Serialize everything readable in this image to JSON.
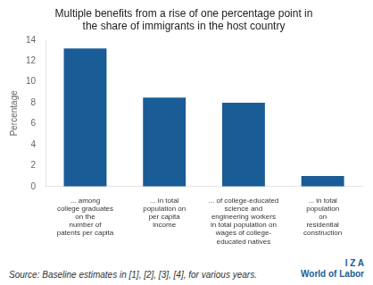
{
  "chart_data": {
    "type": "bar",
    "title": [
      "Multiple benefits from a rise of one percentage point in",
      "the share of immigrants in the host country"
    ],
    "categories": [
      [
        "... among",
        "college graduates",
        "on the",
        "number of",
        "patents per capita"
      ],
      [
        "... in total",
        "population on",
        "per capita",
        "income"
      ],
      [
        "... of college-educated",
        "science and",
        "engineering workers",
        "in total population on",
        "wages of college-",
        "educated natives"
      ],
      [
        "... in total",
        "population",
        "on",
        "residential",
        "construction"
      ]
    ],
    "values": [
      13.2,
      8.5,
      8.0,
      1.0
    ],
    "color": "#1a5c96",
    "ylabel": "Percentage",
    "ylim": [
      0,
      14
    ],
    "yticks": [
      0,
      2,
      4,
      6,
      8,
      10,
      12,
      14
    ],
    "grid": false,
    "annotations": [
      "Source: Baseline estimates in [1], [2], [3], [4], for various years.",
      "I  Z  A",
      "World of Labor"
    ]
  }
}
